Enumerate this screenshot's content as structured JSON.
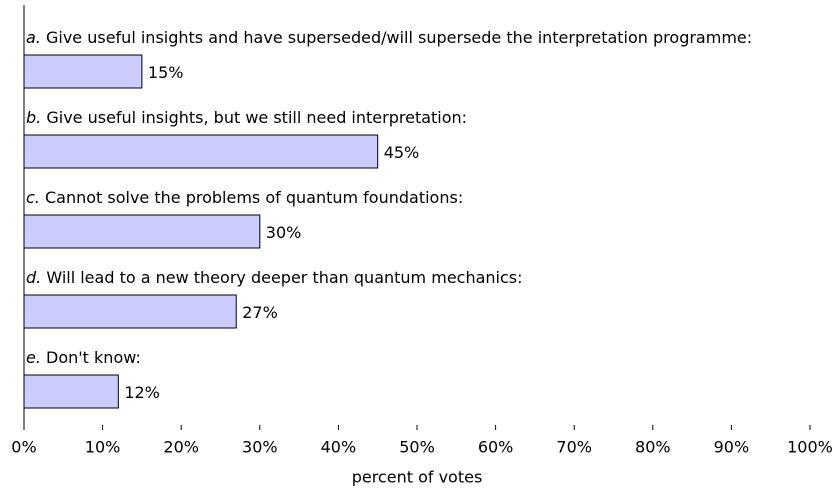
{
  "chart_data": {
    "type": "hbar",
    "category_letters": [
      "a.",
      "b.",
      "c.",
      "d.",
      "e."
    ],
    "categories": [
      "Give useful insights and have superseded/will supersede the interpretation programme:",
      "Give useful insights, but we still need interpretation:",
      "Cannot solve the problems of quantum foundations:",
      "Will lead to a new theory deeper than quantum mechanics:",
      "Don't know:"
    ],
    "values": [
      15,
      45,
      30,
      27,
      12
    ],
    "value_labels": [
      "15%",
      "45%",
      "30%",
      "27%",
      "12%"
    ],
    "color": "#ccccff",
    "xlabel": "percent of votes",
    "xlim": [
      0,
      100
    ],
    "xticks": [
      {
        "value": 0,
        "label": "0%"
      },
      {
        "value": 10,
        "label": "10%"
      },
      {
        "value": 20,
        "label": "20%"
      },
      {
        "value": 30,
        "label": "30%"
      },
      {
        "value": 40,
        "label": "40%"
      },
      {
        "value": 50,
        "label": "50%"
      },
      {
        "value": 60,
        "label": "60%"
      },
      {
        "value": 70,
        "label": "70%"
      },
      {
        "value": 80,
        "label": "80%"
      },
      {
        "value": 90,
        "label": "90%"
      },
      {
        "value": 100,
        "label": "100%"
      }
    ]
  }
}
